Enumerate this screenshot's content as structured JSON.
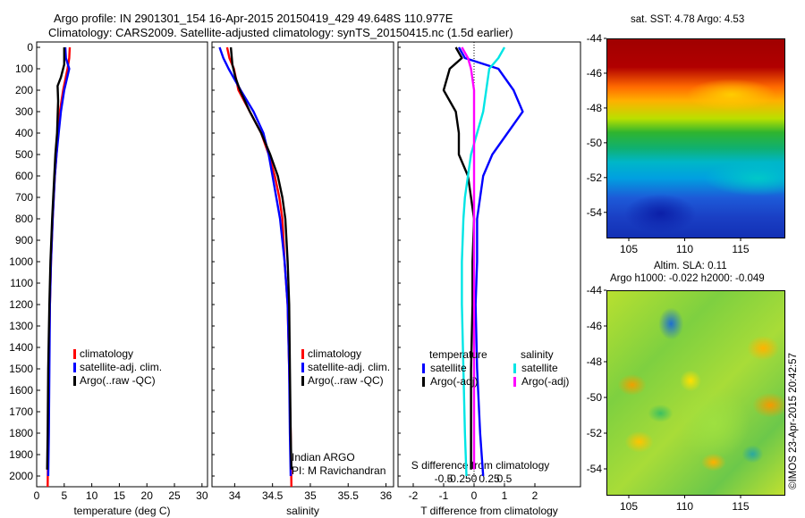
{
  "header": {
    "line1": "Argo profile: IN 2901301_154 16-Apr-2015 20150419_429 49.648S 110.977E",
    "line2": "Climatology: CARS2009. Satellite-adjusted climatology: synTS_20150415.nc (1.5d earlier)"
  },
  "credit": "©IMOS 23-Apr-2015 20:42:57",
  "colors": {
    "climatology": "#ff0000",
    "satellite": "#0000ff",
    "argo": "#000000",
    "sat_salinity": "#00e5e5",
    "argo_salinity": "#ff00ff"
  },
  "chart_data": [
    {
      "type": "line",
      "panel": "temperature",
      "xlabel": "temperature (deg C)",
      "ylabel": "",
      "xlim": [
        0,
        31
      ],
      "ylim": [
        2050,
        0
      ],
      "y_reversed": true,
      "xticks": [
        0,
        5,
        10,
        15,
        20,
        25,
        30
      ],
      "yticks": [
        0,
        100,
        200,
        300,
        400,
        500,
        600,
        700,
        800,
        900,
        1000,
        1100,
        1200,
        1300,
        1400,
        1500,
        1600,
        1700,
        1800,
        1900,
        2000
      ],
      "legend": [
        "climatology",
        "satellite-adj. clim.",
        "Argo(..raw -QC)"
      ],
      "series": [
        {
          "name": "climatology",
          "x": [
            6.0,
            5.9,
            5.6,
            4.8,
            4.2,
            3.9,
            3.6,
            3.3,
            3.1,
            2.9,
            2.6,
            2.4,
            2.2,
            2.1,
            2.0
          ],
          "y": [
            0,
            50,
            100,
            200,
            300,
            400,
            500,
            600,
            700,
            800,
            1000,
            1200,
            1500,
            1800,
            2050
          ]
        },
        {
          "name": "satellite-adj. clim.",
          "x": [
            5.2,
            5.3,
            5.9,
            5.0,
            4.4,
            4.0,
            3.6,
            3.3,
            3.1,
            2.9,
            2.6,
            2.4,
            2.3,
            2.2,
            2.1
          ],
          "y": [
            0,
            50,
            100,
            200,
            300,
            400,
            500,
            600,
            700,
            800,
            1000,
            1200,
            1500,
            1800,
            2000
          ]
        },
        {
          "name": "Argo(..raw -QC)",
          "x": [
            5.0,
            5.0,
            4.4,
            3.8,
            3.9,
            3.7,
            3.4,
            3.2,
            3.0,
            2.8,
            2.5,
            2.3,
            2.1,
            2.0,
            1.9
          ],
          "y": [
            0,
            80,
            140,
            180,
            250,
            400,
            500,
            600,
            700,
            800,
            1000,
            1200,
            1500,
            1800,
            1970
          ]
        }
      ]
    },
    {
      "type": "line",
      "panel": "salinity",
      "xlabel": "salinity",
      "xlim": [
        33.7,
        36.1
      ],
      "ylim": [
        2050,
        0
      ],
      "y_reversed": true,
      "xticks": [
        34,
        34.5,
        35,
        35.5,
        36
      ],
      "legend": [
        "climatology",
        "satellite-adj. clim.",
        "Argo(..raw -QC)"
      ],
      "annotation": [
        "Indian ARGO",
        "PI: M Ravichandran"
      ],
      "series": [
        {
          "name": "climatology",
          "x": [
            33.9,
            33.93,
            33.99,
            34.05,
            34.2,
            34.35,
            34.45,
            34.53,
            34.59,
            34.63,
            34.66,
            34.7,
            34.72,
            34.74,
            34.75
          ],
          "y": [
            0,
            50,
            100,
            200,
            300,
            400,
            500,
            600,
            700,
            800,
            1000,
            1200,
            1500,
            1800,
            2050
          ]
        },
        {
          "name": "satellite-adj. clim.",
          "x": [
            33.8,
            33.85,
            33.92,
            34.08,
            34.25,
            34.38,
            34.45,
            34.5,
            34.55,
            34.6,
            34.66,
            34.7,
            34.72,
            34.73,
            34.74
          ],
          "y": [
            0,
            50,
            100,
            200,
            300,
            400,
            500,
            600,
            700,
            800,
            1000,
            1200,
            1500,
            1800,
            2000
          ]
        },
        {
          "name": "Argo(..raw -QC)",
          "x": [
            33.95,
            33.97,
            34.01,
            34.07,
            34.2,
            34.35,
            34.47,
            34.57,
            34.63,
            34.67,
            34.7,
            34.72,
            34.73,
            34.74,
            34.75
          ],
          "y": [
            0,
            80,
            140,
            200,
            300,
            400,
            500,
            600,
            700,
            800,
            1000,
            1200,
            1500,
            1800,
            1970
          ]
        }
      ]
    },
    {
      "type": "line",
      "panel": "difference",
      "xlabel": "T difference from climatology",
      "x2label": "S difference from climatology",
      "xlim": [
        -2.5,
        3.5
      ],
      "ylim": [
        2050,
        0
      ],
      "y_reversed": true,
      "xticks": [
        -2,
        -1,
        0,
        1,
        2
      ],
      "x2ticks": [
        "-0.5",
        "-0.25",
        "0",
        "0.25",
        "0.5"
      ],
      "legend_headers": [
        "temperature",
        "salinity"
      ],
      "legend": [
        "satellite",
        "Argo(-adj)",
        "satellite",
        "Argo(-adj)"
      ],
      "series": [
        {
          "name": "satellite",
          "group": "temperature",
          "x": [
            -0.5,
            -0.3,
            0.8,
            1.3,
            1.6,
            1.1,
            0.6,
            0.3,
            0.2,
            0.1,
            0.1,
            0.05,
            0.1,
            0.2,
            0.3
          ],
          "y": [
            0,
            50,
            100,
            200,
            300,
            400,
            500,
            600,
            700,
            800,
            1000,
            1200,
            1500,
            1800,
            2000
          ]
        },
        {
          "name": "Argo(-adj)",
          "group": "temperature",
          "x": [
            -0.6,
            -0.4,
            -0.8,
            -1.0,
            -0.6,
            -0.5,
            -0.5,
            -0.2,
            -0.1,
            0.0,
            -0.05,
            -0.05,
            -0.1,
            -0.1,
            -0.1
          ],
          "y": [
            0,
            50,
            100,
            200,
            300,
            400,
            500,
            600,
            700,
            800,
            1000,
            1200,
            1500,
            1800,
            1970
          ]
        },
        {
          "name": "satellite",
          "group": "salinity",
          "x": [
            1.0,
            0.8,
            0.5,
            0.4,
            0.3,
            0.1,
            -0.1,
            -0.2,
            -0.3,
            -0.35,
            -0.4,
            -0.4,
            -0.35,
            -0.3,
            -0.25
          ],
          "y": [
            0,
            50,
            100,
            200,
            300,
            400,
            500,
            600,
            700,
            800,
            1000,
            1200,
            1500,
            1800,
            2000
          ]
        },
        {
          "name": "Argo(-adj)",
          "group": "salinity",
          "x": [
            -0.4,
            -0.2,
            -0.1,
            0.0,
            0.0,
            0.0,
            0.0,
            0.0,
            0.0,
            0.0,
            0.0,
            0.0,
            0.0,
            0.0,
            0.0
          ],
          "y": [
            0,
            50,
            100,
            200,
            300,
            400,
            500,
            600,
            700,
            800,
            1000,
            1200,
            1500,
            1800,
            1970
          ]
        }
      ]
    },
    {
      "type": "heatmap",
      "panel": "sst-map",
      "title": "sat. SST: 4.78 Argo: 4.53",
      "xlim": [
        103,
        119
      ],
      "ylim": [
        -55.5,
        -44
      ],
      "xticks": [
        105,
        110,
        115
      ],
      "yticks": [
        -44,
        -46,
        -48,
        -50,
        -52,
        -54
      ]
    },
    {
      "type": "heatmap",
      "panel": "sla-map",
      "title": [
        "Altim. SLA: 0.11",
        "Argo h1000: -0.022 h2000: -0.049"
      ],
      "xlim": [
        103,
        119
      ],
      "ylim": [
        -55.5,
        -44
      ],
      "xticks": [
        105,
        110,
        115
      ],
      "yticks": [
        -44,
        -46,
        -48,
        -50,
        -52,
        -54
      ]
    }
  ]
}
